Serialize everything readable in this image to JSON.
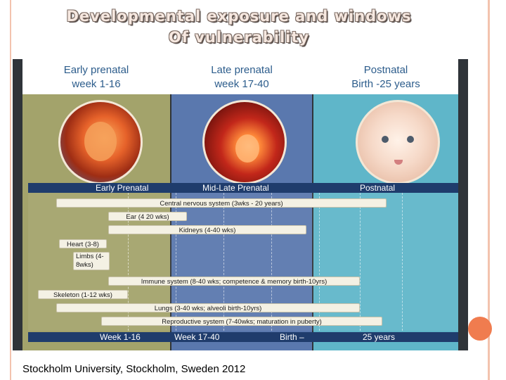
{
  "slide": {
    "title_line1": "Developmental exposure and windows",
    "title_line2": "Of vulnerability",
    "footer": "Stockholm University, Stockholm, Sweden 2012",
    "colors": {
      "accent": "#f07c4f",
      "border": "#f3c3ae",
      "band": "#1f3c6c"
    }
  },
  "diagram": {
    "columns": [
      {
        "line1": "Early prenatal",
        "line2": "week 1-16",
        "color": "#a3a36b",
        "icon": "embryo-image"
      },
      {
        "line1": "Late prenatal",
        "line2": "week 17-40",
        "color": "#5a78ae",
        "icon": "fetus-image"
      },
      {
        "line1": "Postnatal",
        "line2": "Birth -25 years",
        "color": "#5fb6c9",
        "icon": "baby-image"
      }
    ],
    "stage_band": [
      "Early Prenatal",
      "Mid-Late Prenatal",
      "Postnatal"
    ],
    "bars": [
      {
        "label": "Central nervous system (3wks - 20 years)"
      },
      {
        "label": "Ear (4 20 wks)"
      },
      {
        "label": "Kidneys (4-40 wks)"
      },
      {
        "label": "Heart (3-8)"
      },
      {
        "label": "Limbs (4-8wks)"
      },
      {
        "label": "Immune system (8-40 wks; competence & memory birth-10yrs)"
      },
      {
        "label": "Skeleton (1-12 wks)"
      },
      {
        "label": "Lungs (3-40 wks; alveoli birth-10yrs)"
      },
      {
        "label": "Reproductive system (7-40wks; maturation in puberty)"
      }
    ],
    "timeline": [
      "Week 1-16",
      "Week 17-40",
      "Birth –",
      "25 years"
    ]
  }
}
